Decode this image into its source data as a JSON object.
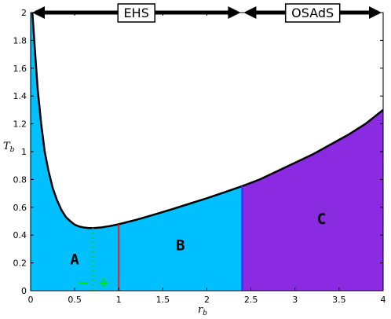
{
  "chart_data": {
    "type": "area",
    "xlabel": "r",
    "xlabel_sub": "b",
    "ylabel": "T",
    "ylabel_sub": "b",
    "xlim": [
      0,
      4
    ],
    "ylim": [
      0,
      2
    ],
    "xticks": [
      "0",
      "0.5",
      "1",
      "1.5",
      "2",
      "2.5",
      "3",
      "3.5",
      "4"
    ],
    "yticks": [
      "0",
      "0.2",
      "0.4",
      "0.6",
      "0.8",
      "1",
      "1.2",
      "1.4",
      "1.6",
      "1.8",
      "2"
    ],
    "grid": false,
    "curve": {
      "x": [
        0.02,
        0.05,
        0.08,
        0.12,
        0.16,
        0.2,
        0.25,
        0.3,
        0.35,
        0.4,
        0.45,
        0.5,
        0.55,
        0.6,
        0.65,
        0.707,
        0.8,
        0.9,
        1.0,
        1.2,
        1.4,
        1.6,
        1.8,
        2.0,
        2.2,
        2.4,
        2.6,
        2.8,
        3.0,
        3.2,
        3.4,
        3.6,
        3.8,
        4.0
      ],
      "y": [
        2.0,
        1.72,
        1.45,
        1.2,
        1.0,
        0.87,
        0.74,
        0.65,
        0.58,
        0.53,
        0.5,
        0.475,
        0.462,
        0.455,
        0.451,
        0.45,
        0.455,
        0.465,
        0.478,
        0.51,
        0.547,
        0.585,
        0.625,
        0.665,
        0.708,
        0.752,
        0.8,
        0.86,
        0.92,
        0.98,
        1.05,
        1.12,
        1.2,
        1.3
      ]
    },
    "regions": [
      {
        "label": "A",
        "x_from": 0.0,
        "x_to": 1.0,
        "label_x": 0.5,
        "label_y": 0.23,
        "color": "#00c0ff"
      },
      {
        "label": "B",
        "x_from": 1.0,
        "x_to": 2.4,
        "label_x": 1.7,
        "label_y": 0.33,
        "color": "#00c0ff"
      },
      {
        "label": "C",
        "x_from": 2.4,
        "x_to": 4.0,
        "label_x": 3.3,
        "label_y": 0.52,
        "color": "#8a2be2"
      }
    ],
    "vlines": [
      {
        "x": 0.707,
        "color": "#00e000",
        "style": "dashed"
      },
      {
        "x": 1.0,
        "color": "#e02020",
        "style": "solid"
      },
      {
        "x": 2.4,
        "color": "#3030ff",
        "style": "solid"
      }
    ],
    "signs": [
      {
        "text": "−",
        "x": 0.6,
        "y": 0.06
      },
      {
        "text": "+",
        "x": 0.83,
        "y": 0.06
      }
    ],
    "banner": {
      "segments": [
        {
          "label": "EHS",
          "x_from": 0.0,
          "x_to": 2.4
        },
        {
          "label": "OSAdS",
          "x_from": 2.4,
          "x_to": 4.0
        }
      ]
    }
  }
}
